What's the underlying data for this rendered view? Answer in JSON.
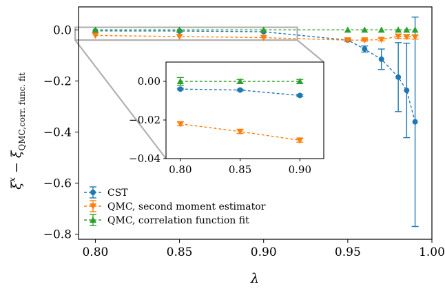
{
  "chart_data": {
    "type": "line",
    "xlabel": "λ",
    "ylabel": "ξ^x − ξ^x_{QMC,corr. func. fit}",
    "ylabel_main": "ξ",
    "ylabel_sup": "x",
    "ylabel_minus": " − ",
    "ylabel_sub": "QMC,corr. func. fit",
    "xlim": [
      0.79,
      1.0
    ],
    "ylim": [
      -0.82,
      0.09
    ],
    "x_ticks": [
      "0.80",
      "0.85",
      "0.90",
      "0.95",
      "1.00"
    ],
    "y_ticks": [
      "0.0",
      "−0.2",
      "−0.4",
      "−0.6",
      "−0.8"
    ],
    "legend_position": "lower-left",
    "grid": false,
    "series": [
      {
        "name": "CST",
        "color": "#1f77b4",
        "marker": "circle",
        "linestyle": "dashed",
        "x": [
          0.8,
          0.85,
          0.9,
          0.95,
          0.96,
          0.97,
          0.98,
          0.985,
          0.99
        ],
        "y": [
          -0.004,
          -0.0045,
          -0.0073,
          -0.04,
          -0.075,
          -0.115,
          -0.185,
          -0.237,
          -0.36
        ],
        "yerr": [
          0.0004,
          0.0004,
          0.0005,
          0.005,
          0.012,
          0.04,
          0.135,
          0.185,
          0.41
        ]
      },
      {
        "name": "QMC, second moment estimator",
        "color": "#ff7f0e",
        "marker": "triangle-down",
        "linestyle": "dashed",
        "x": [
          0.8,
          0.85,
          0.9,
          0.95,
          0.96,
          0.97,
          0.98,
          0.985,
          0.99
        ],
        "y": [
          -0.022,
          -0.026,
          -0.0305,
          -0.04,
          -0.04,
          -0.038,
          -0.025,
          -0.027,
          -0.028
        ],
        "yerr": [
          0.001,
          0.001,
          0.001,
          0.003,
          0.004,
          0.005,
          0.008,
          0.008,
          0.008
        ]
      },
      {
        "name": "QMC, correlation function fit",
        "color": "#2ca02c",
        "marker": "triangle-up",
        "linestyle": "dashed",
        "x": [
          0.8,
          0.85,
          0.9,
          0.95,
          0.96,
          0.97,
          0.98,
          0.985,
          0.99
        ],
        "y": [
          0,
          0,
          0,
          0,
          0,
          0,
          0,
          0,
          0
        ],
        "yerr": [
          0.002,
          0.001,
          0.001,
          0.001,
          0.001,
          0.001,
          0.001,
          0.001,
          0.001
        ]
      }
    ],
    "inset": {
      "xlim": [
        0.788,
        0.92
      ],
      "ylim": [
        -0.04,
        0.01
      ],
      "x_ticks": [
        "0.80",
        "0.85",
        "0.90"
      ],
      "y_ticks": [
        "0.00",
        "−0.02",
        "−0.04"
      ]
    }
  }
}
